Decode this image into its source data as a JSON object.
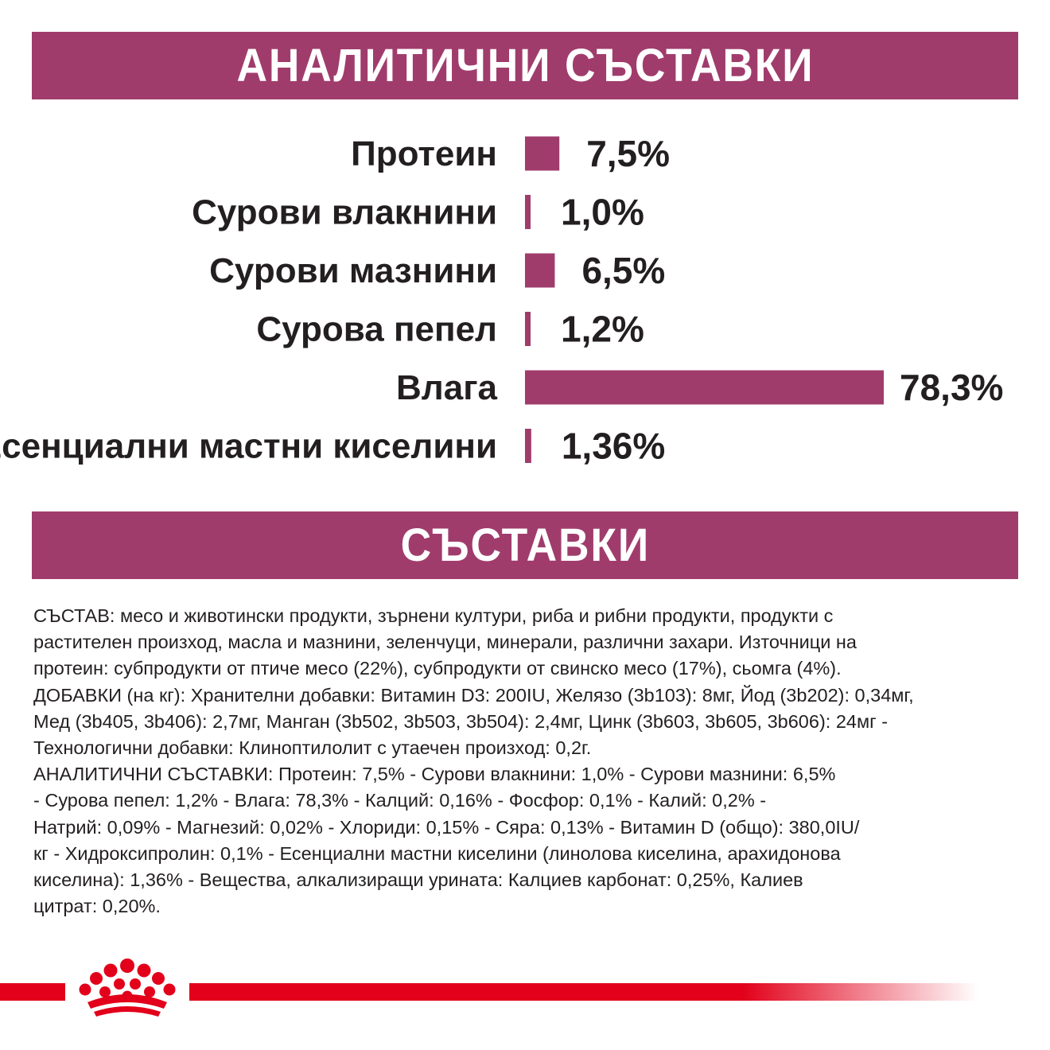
{
  "header": {
    "analytical_title": "АНАЛИТИЧНИ СЪСТАВКИ"
  },
  "chart_data": {
    "type": "bar",
    "orientation": "horizontal",
    "categories": [
      "Протеин",
      "Сурови влакнини",
      "Сурови мазнини",
      "Сурова пепел",
      "Влага",
      "Есенциални мастни киселини"
    ],
    "values": [
      7.5,
      1.0,
      6.5,
      1.2,
      78.3,
      1.36
    ],
    "value_labels": [
      "7,5%",
      "1,0%",
      "6,5%",
      "1,2%",
      "78,3%",
      "1,36%"
    ],
    "xlim": [
      0,
      78.3
    ],
    "bar_color": "#a03c6c",
    "grid": false
  },
  "ingredients": {
    "title": "СЪСТАВКИ",
    "text": "СЪСТАВ: месо и животински продукти, зърнени култури, риба и рибни продукти, продукти с\nрастителен произход, масла и мазнини, зеленчуци, минерали, различни захари. Източници на\nпротеин: субпродукти от птиче месо (22%), субпродукти от свинско месо (17%), сьомга (4%).\nДОБАВКИ (на кг): Хранителни добавки: Витамин D3: 200IU, Желязо (3b103): 8мг, Йод (3b202): 0,34мг,\nМед (3b405, 3b406): 2,7мг, Манган (3b502, 3b503, 3b504): 2,4мг, Цинк (3b603, 3b605, 3b606): 24мг -\nТехнологични добавки: Клиноптилолит с утаечен произход: 0,2г.\nАНАЛИТИЧНИ СЪСТАВКИ: Протеин: 7,5% - Сурови влакнини: 1,0% - Сурови мазнини: 6,5%\n- Сурова пепел: 1,2% - Влага: 78,3% - Калций: 0,16% - Фосфор: 0,1% - Калий: 0,2% -\nНатрий: 0,09% - Магнезий: 0,02% - Хлориди: 0,15% - Сяра: 0,13% - Витамин D (общо): 380,0IU/\nкг - Хидроксипролин: 0,1% - Есенциални мастни киселини (линолова киселина, арахидонова\nкиселина): 1,36% - Вещества, алкализиращи урината: Калциев карбонат: 0,25%, Калиев\nцитрат: 0,20%."
  },
  "footer": {
    "logo_icon": "crown-icon",
    "line_color": "#e2001a"
  }
}
